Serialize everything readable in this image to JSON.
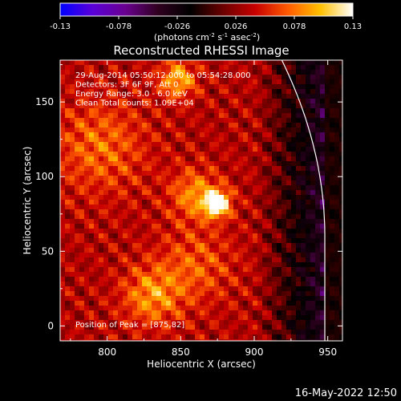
{
  "colorbar": {
    "ticks": [
      "-0.13",
      "-0.078",
      "-0.026",
      "0.026",
      "0.078",
      "0.13"
    ],
    "unit_label_prefix": "(photons cm",
    "unit_sup1": "-2",
    "unit_mid": " s",
    "unit_sup2": "-1",
    "unit_mid2": " asec",
    "unit_sup3": "-2",
    "unit_suffix": ")",
    "stops": [
      "#0000ff",
      "#5a00d8",
      "#6a0090",
      "#300020",
      "#000000",
      "#6a0000",
      "#c80000",
      "#ff5a00",
      "#ffc000",
      "#ffffff"
    ]
  },
  "footer": {
    "timestamp": "16-May-2022 12:50"
  },
  "chart_data": {
    "type": "heatmap",
    "title": "Reconstructed RHESSI Image",
    "xlabel": "Heliocentric X (arcsec)",
    "ylabel": "Heliocentric Y (arcsec)",
    "xlim": [
      768,
      960
    ],
    "ylim": [
      -10,
      178
    ],
    "xticks": [
      800,
      850,
      900,
      950
    ],
    "yticks": [
      0,
      50,
      100,
      150
    ],
    "annotations": [
      "29-Aug-2014 05:50:12.000 to 05:54:28.000",
      "Detectors: 3F 6F 9F, Att 0",
      "Energy Range: 3.0 - 6.0 keV",
      "Clean     Total counts: 1.09E+04"
    ],
    "peak_label": "Position of Peak = [875,82]",
    "peak": {
      "x": 875,
      "y": 82
    },
    "limb_color": "#ffffff",
    "sources": [
      {
        "x": 875,
        "y": 82,
        "amp": 1.0,
        "sigma": 6
      },
      {
        "x": 860,
        "y": 88,
        "amp": 0.45,
        "sigma": 12
      },
      {
        "x": 848,
        "y": 165,
        "amp": 0.55,
        "sigma": 9
      },
      {
        "x": 830,
        "y": 20,
        "amp": 0.45,
        "sigma": 14
      },
      {
        "x": 795,
        "y": 120,
        "amp": 0.35,
        "sigma": 22
      },
      {
        "x": 860,
        "y": 40,
        "amp": 0.3,
        "sigma": 18
      }
    ]
  }
}
